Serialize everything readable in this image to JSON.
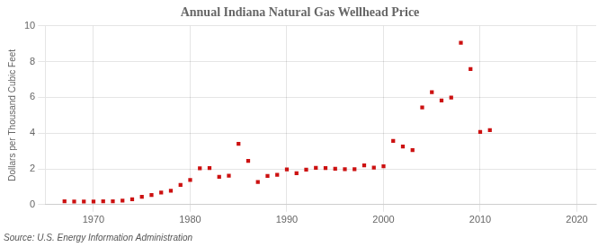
{
  "chart_data": {
    "type": "scatter",
    "title": "Annual Indiana Natural Gas Wellhead Price",
    "ylabel": "Dollars per Thousand Cubic Feet",
    "annotation": "Source: U.S. Energy Information Administration",
    "x": [
      1967,
      1968,
      1969,
      1970,
      1971,
      1972,
      1973,
      1974,
      1975,
      1976,
      1977,
      1978,
      1979,
      1980,
      1981,
      1982,
      1983,
      1984,
      1985,
      1986,
      1987,
      1988,
      1989,
      1990,
      1991,
      1992,
      1993,
      1994,
      1995,
      1996,
      1997,
      1998,
      1999,
      2000,
      2001,
      2002,
      2003,
      2004,
      2005,
      2006,
      2007,
      2008,
      2009,
      2010,
      2011
    ],
    "values": [
      0.18,
      0.17,
      0.17,
      0.17,
      0.18,
      0.18,
      0.22,
      0.3,
      0.44,
      0.54,
      0.68,
      0.78,
      1.1,
      1.38,
      2.03,
      2.04,
      1.55,
      1.62,
      3.4,
      2.44,
      1.27,
      1.6,
      1.67,
      1.97,
      1.76,
      1.95,
      2.06,
      2.04,
      2.01,
      1.98,
      1.98,
      2.19,
      2.07,
      2.15,
      3.57,
      3.25,
      3.05,
      5.44,
      6.29,
      5.82,
      5.99,
      9.06,
      7.58,
      4.07,
      4.17
    ],
    "color": "#cc1111",
    "marker": "square",
    "xlim": [
      1965,
      2022
    ],
    "ylim": [
      0,
      10
    ],
    "xticks": [
      1970,
      1980,
      1990,
      2000,
      2010,
      2020
    ],
    "yticks": [
      0,
      2,
      4,
      6,
      8,
      10
    ],
    "grid": true
  }
}
